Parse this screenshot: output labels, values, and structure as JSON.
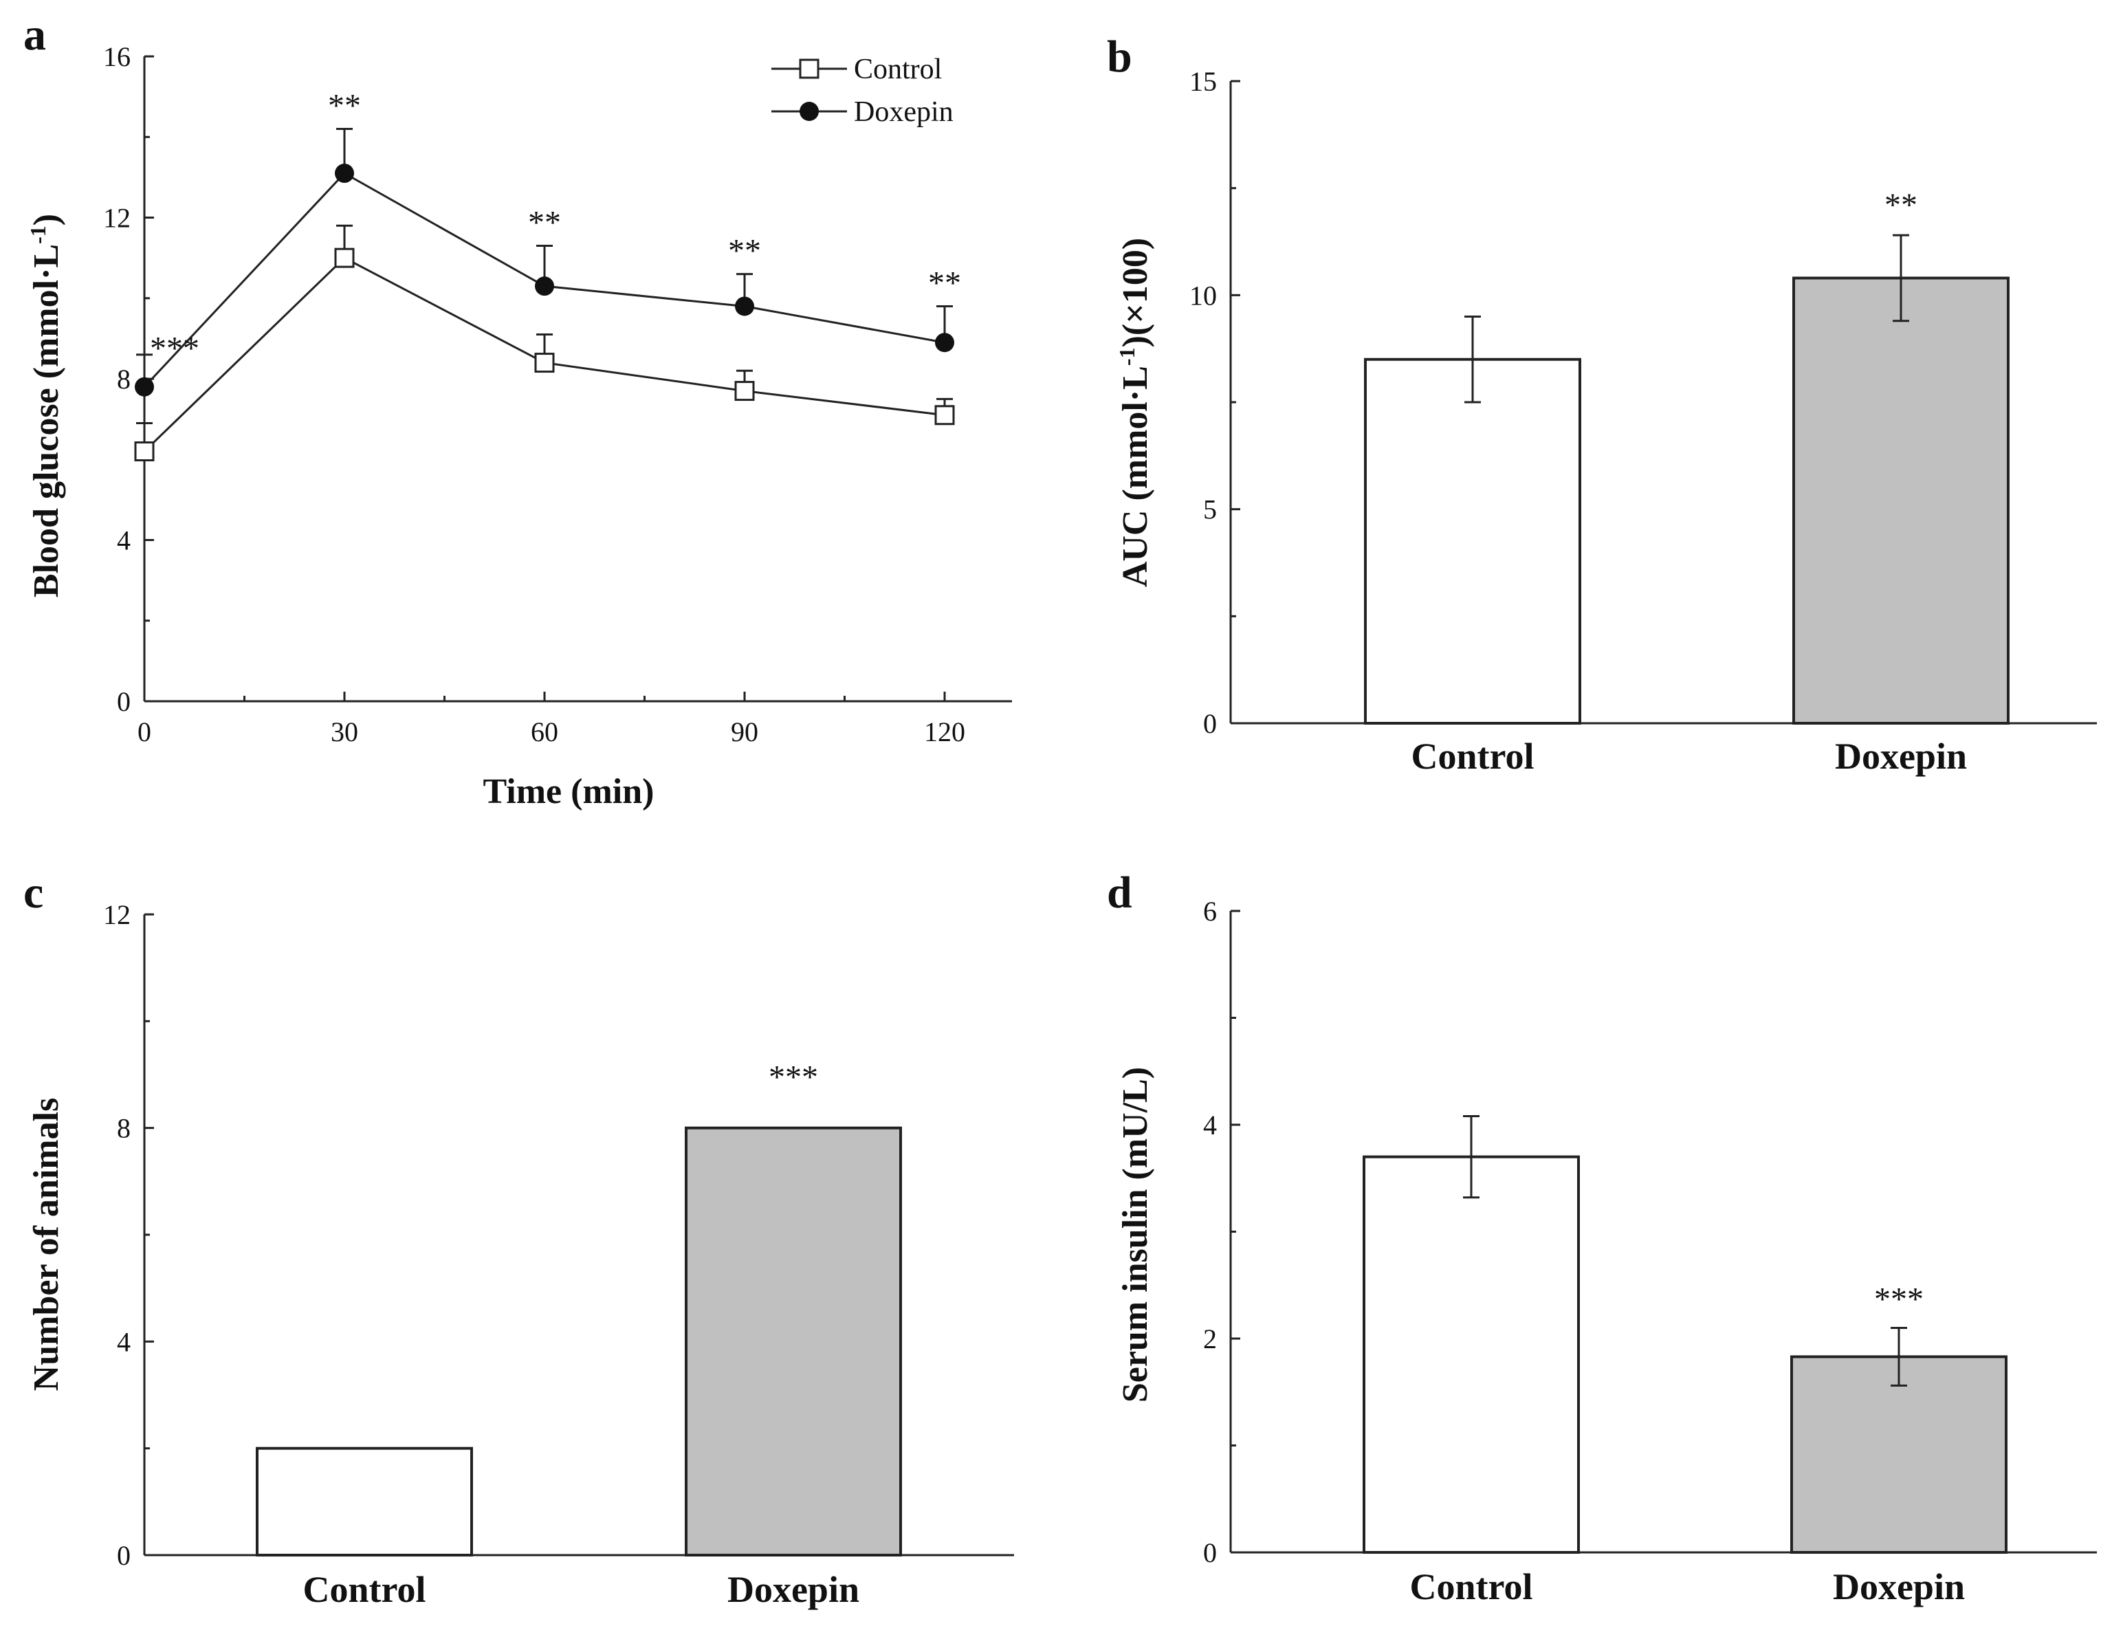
{
  "chart_data": [
    {
      "panel": "a",
      "type": "line",
      "xlabel": "Time (min)",
      "ylabel": "Blood glucose (mmol·L-1)",
      "ylabel_main": "Blood glucose (mmol·L",
      "ylabel_sup": "-1",
      "ylabel_end": ")",
      "x": [
        0,
        30,
        60,
        90,
        120
      ],
      "xticks": [
        "0",
        "30",
        "60",
        "90",
        "120"
      ],
      "yticks": [
        "0",
        "4",
        "8",
        "12",
        "16"
      ],
      "ylim": [
        0,
        16
      ],
      "xlim": [
        0,
        130
      ],
      "legend_position": "top-right",
      "series": [
        {
          "name": "Control",
          "marker": "open-square",
          "values": [
            6.2,
            11.0,
            8.4,
            7.7,
            7.1
          ],
          "errors": [
            0.7,
            0.8,
            0.7,
            0.5,
            0.4
          ]
        },
        {
          "name": "Doxepin",
          "marker": "filled-circle",
          "values": [
            7.8,
            13.1,
            10.3,
            9.8,
            8.9
          ],
          "errors": [
            0.8,
            1.1,
            1.0,
            0.8,
            0.9
          ]
        }
      ],
      "annotations": [
        "***",
        "**",
        "**",
        "**",
        "**"
      ]
    },
    {
      "panel": "b",
      "type": "bar",
      "ylabel": "AUC (mmol·L-1)(×100)",
      "ylabel_main": "AUC (mmol·L",
      "ylabel_sup": "-1",
      "ylabel_end": ")(×100)",
      "categories": [
        "Control",
        "Doxepin"
      ],
      "values": [
        8.5,
        10.4
      ],
      "errors": [
        1.0,
        1.0
      ],
      "colors": [
        "#ffffff",
        "#c0c0c0"
      ],
      "yticks": [
        "0",
        "5",
        "10",
        "15"
      ],
      "ylim": [
        0,
        15
      ],
      "annotations": [
        "",
        "**"
      ]
    },
    {
      "panel": "c",
      "type": "bar",
      "ylabel": "Number of animals",
      "categories": [
        "Control",
        "Doxepin"
      ],
      "values": [
        2,
        8
      ],
      "colors": [
        "#ffffff",
        "#c0c0c0"
      ],
      "yticks": [
        "0",
        "4",
        "8",
        "12"
      ],
      "ylim": [
        0,
        12
      ],
      "annotations": [
        "",
        "***"
      ]
    },
    {
      "panel": "d",
      "type": "bar",
      "ylabel": "Serum insulin (mU/L)",
      "categories": [
        "Control",
        "Doxepin"
      ],
      "values": [
        3.7,
        1.83
      ],
      "errors": [
        0.38,
        0.27
      ],
      "colors": [
        "#ffffff",
        "#c0c0c0"
      ],
      "yticks": [
        "0",
        "2",
        "4",
        "6"
      ],
      "ylim": [
        0,
        6
      ],
      "annotations": [
        "",
        "***"
      ]
    }
  ]
}
